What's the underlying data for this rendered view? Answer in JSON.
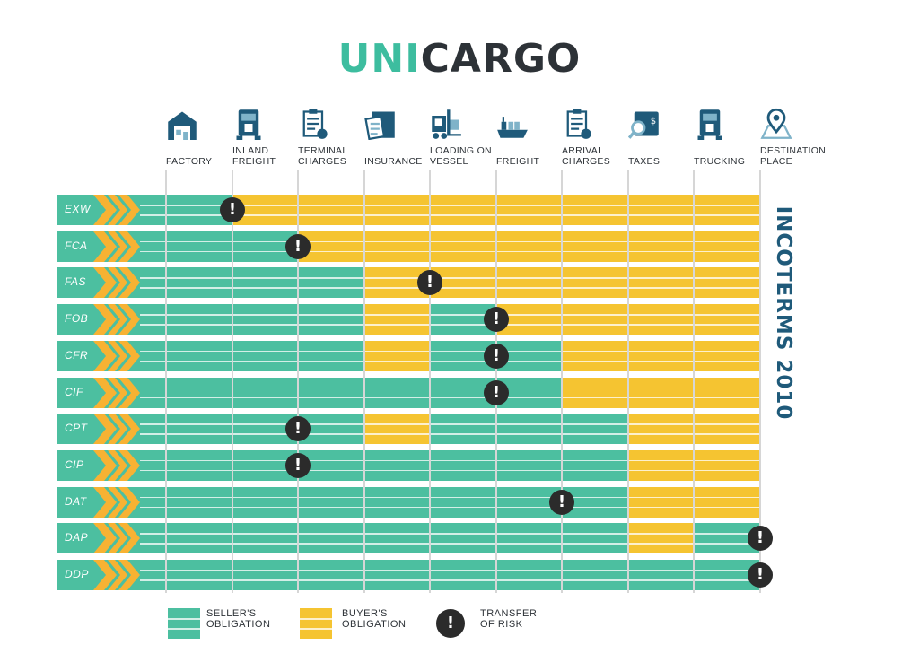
{
  "logo": {
    "part1": "UNI",
    "part2": "CARGO"
  },
  "side_title": "INCOTERMS 2010",
  "colors": {
    "seller": "#4cbfa0",
    "buyer": "#f5c431",
    "chevron": "#f7b233",
    "risk": "#2b2b2b",
    "icon": "#1f5a7a"
  },
  "chart_data": {
    "type": "table",
    "columns": [
      {
        "label": "FACTORY",
        "icon": "warehouse-icon"
      },
      {
        "label": "INLAND FREIGHT",
        "icon": "truck-icon"
      },
      {
        "label": "TERMINAL CHARGES",
        "icon": "clipboard-icon"
      },
      {
        "label": "INSURANCE",
        "icon": "document-box-icon"
      },
      {
        "label": "LOADING ON VESSEL",
        "icon": "forklift-icon"
      },
      {
        "label": "FREIGHT",
        "icon": "ship-icon"
      },
      {
        "label": "ARRIVAL CHARGES",
        "icon": "clipboard-icon"
      },
      {
        "label": "TAXES",
        "icon": "tax-search-icon"
      },
      {
        "label": "TRUCKING",
        "icon": "truck-icon"
      },
      {
        "label": "DESTINATION PLACE",
        "icon": "map-pin-icon"
      }
    ],
    "rows": [
      {
        "term": "EXW",
        "cells": "SBBBBBBBB",
        "risk_at": "INLAND FREIGHT"
      },
      {
        "term": "FCA",
        "cells": "SSBBBBBBB",
        "risk_at": "TERMINAL CHARGES"
      },
      {
        "term": "FAS",
        "cells": "SSSBBBBBB",
        "risk_at": "LOADING ON VESSEL"
      },
      {
        "term": "FOB",
        "cells": "SSSBSBBBB",
        "risk_at": "FREIGHT"
      },
      {
        "term": "CFR",
        "cells": "SSSBSSBBB",
        "risk_at": "FREIGHT"
      },
      {
        "term": "CIF",
        "cells": "SSSSSSBBB",
        "risk_at": "FREIGHT"
      },
      {
        "term": "CPT",
        "cells": "SSSBSSSBB",
        "risk_at": "TERMINAL CHARGES"
      },
      {
        "term": "CIP",
        "cells": "SSSSSSSBB",
        "risk_at": "TERMINAL CHARGES"
      },
      {
        "term": "DAT",
        "cells": "SSSSSSSBB",
        "risk_at": "ARRIVAL CHARGES"
      },
      {
        "term": "DAP",
        "cells": "SSSSSSSBS",
        "risk_at": "DESTINATION PLACE"
      },
      {
        "term": "DDP",
        "cells": "SSSSSSSSS",
        "risk_at": "DESTINATION PLACE"
      }
    ],
    "legend": [
      {
        "key": "S",
        "label1": "SELLER'S",
        "label2": "OBLIGATION"
      },
      {
        "key": "B",
        "label1": "BUYER'S",
        "label2": "OBLIGATION"
      },
      {
        "key": "risk",
        "label1": "TRANSFER",
        "label2": "OF RISK"
      }
    ]
  }
}
